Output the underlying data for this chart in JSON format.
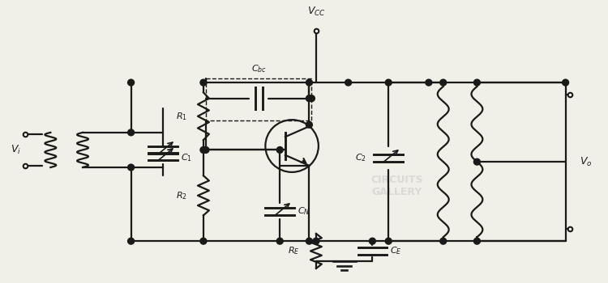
{
  "bg_color": "#f0efe8",
  "line_color": "#1a1a1a",
  "lw": 1.6,
  "figsize": [
    7.5,
    3.5
  ],
  "dpi": 100
}
